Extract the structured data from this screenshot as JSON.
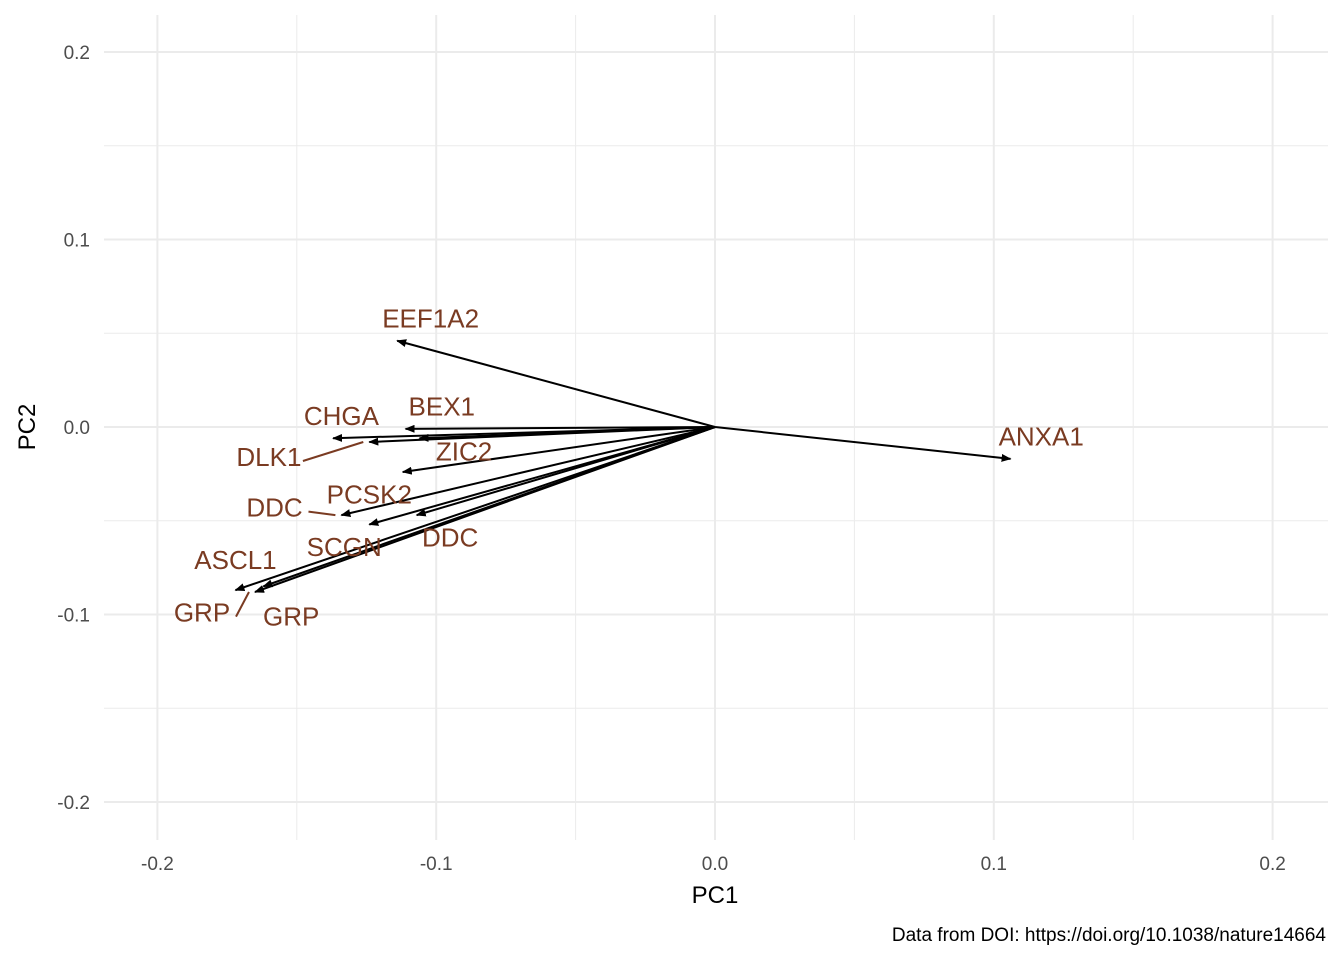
{
  "chart_data": {
    "type": "scatter",
    "subtype": "pca-loadings-biplot",
    "xlabel": "PC1",
    "ylabel": "PC2",
    "caption": "Data from DOI: https://doi.org/10.1038/nature14664",
    "xlim": [
      -0.22,
      0.22
    ],
    "ylim": [
      -0.22,
      0.22
    ],
    "x_ticks": [
      -0.2,
      -0.1,
      0.0,
      0.1,
      0.2
    ],
    "y_ticks": [
      -0.2,
      -0.1,
      0.0,
      0.1,
      0.2
    ],
    "x_tick_labels": [
      "-0.2",
      "-0.1",
      "0.0",
      "0.1",
      "0.2"
    ],
    "y_tick_labels": [
      "-0.2",
      "-0.1",
      "0.0",
      "0.1",
      "0.2"
    ],
    "grid": true,
    "origin": [
      0,
      0
    ],
    "arrow_color": "#000000",
    "label_color": "#7a3b22",
    "grid_color": "#ebebeb",
    "vectors": [
      {
        "label": "EEF1A2",
        "x": -0.114,
        "y": 0.046,
        "label_x": -0.102,
        "label_y": 0.058
      },
      {
        "label": "ANXA1",
        "x": 0.106,
        "y": -0.017,
        "label_x": 0.117,
        "label_y": -0.005
      },
      {
        "label": "BEX1",
        "x": -0.111,
        "y": -0.001,
        "label_x": -0.098,
        "label_y": 0.011
      },
      {
        "label": "CHGA",
        "x": -0.137,
        "y": -0.006,
        "label_x": -0.134,
        "label_y": 0.006
      },
      {
        "label": "DLK1",
        "x": -0.124,
        "y": -0.008,
        "label_x": -0.16,
        "label_y": -0.016
      },
      {
        "label": "ZIC2",
        "x": -0.106,
        "y": -0.006,
        "label_x": -0.09,
        "label_y": -0.013
      },
      {
        "label": "PCSK2",
        "x": -0.112,
        "y": -0.024,
        "label_x": -0.124,
        "label_y": -0.036
      },
      {
        "label": "DDC",
        "x": -0.134,
        "y": -0.047,
        "label_x": -0.158,
        "label_y": -0.043
      },
      {
        "label": "SCGN",
        "x": -0.124,
        "y": -0.052,
        "label_x": -0.133,
        "label_y": -0.064
      },
      {
        "label": "DDC",
        "x": -0.107,
        "y": -0.047,
        "label_x": -0.095,
        "label_y": -0.059
      },
      {
        "label": "ASCL1",
        "x": -0.172,
        "y": -0.087,
        "label_x": -0.172,
        "label_y": -0.071
      },
      {
        "label": "GRP",
        "x": -0.165,
        "y": -0.088,
        "label_x": -0.184,
        "label_y": -0.099
      },
      {
        "label": "GRP",
        "x": -0.162,
        "y": -0.085,
        "label_x": -0.152,
        "label_y": -0.101
      }
    ]
  }
}
